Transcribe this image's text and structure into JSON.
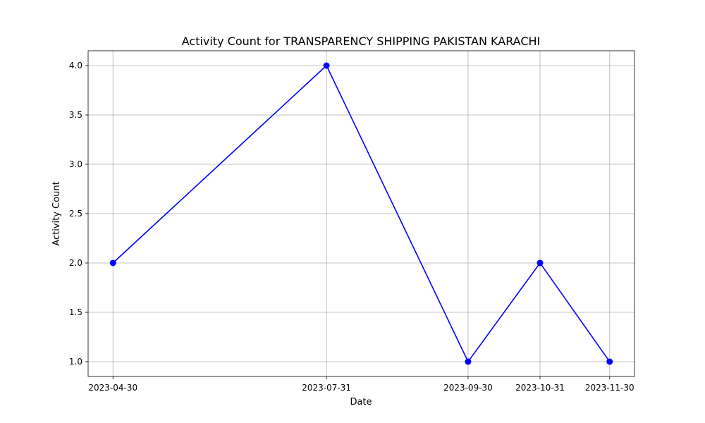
{
  "chart_data": {
    "type": "line",
    "title": "Activity Count for TRANSPARENCY SHIPPING PAKISTAN KARACHI",
    "xlabel": "Date",
    "ylabel": "Activity Count",
    "x": [
      "2023-04-30",
      "2023-07-31",
      "2023-09-30",
      "2023-10-31",
      "2023-11-30"
    ],
    "series": [
      {
        "values": [
          2,
          4,
          1,
          2,
          1
        ],
        "color": "#0000ff",
        "marker": "circle"
      }
    ],
    "ylim": [
      0.85,
      4.15
    ],
    "yticks": [
      "1.0",
      "1.5",
      "2.0",
      "2.5",
      "3.0",
      "3.5",
      "4.0"
    ],
    "grid": true,
    "x_axis_type": "date"
  }
}
